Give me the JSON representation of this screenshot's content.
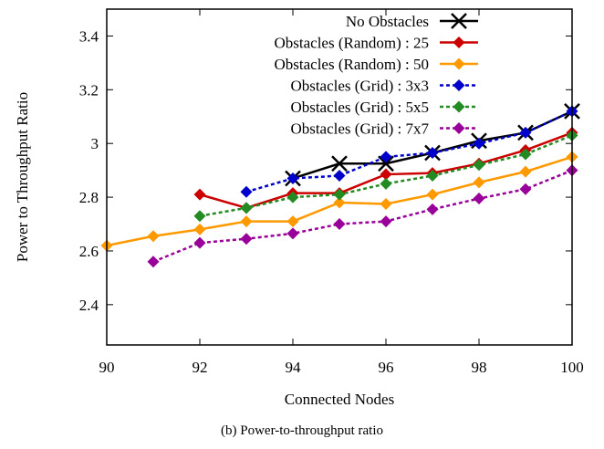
{
  "chart_data": {
    "type": "line",
    "xlabel": "Connected Nodes",
    "ylabel": "Power to Throughput Ratio",
    "caption": "(b) Power-to-throughput ratio",
    "xlim": [
      90,
      100
    ],
    "ylim": [
      2.25,
      3.5
    ],
    "xticks": [
      90,
      92,
      94,
      96,
      98,
      100
    ],
    "yticks": [
      2.4,
      2.6,
      2.8,
      3,
      3.2,
      3.4
    ],
    "ytick_labels": [
      "2.4",
      "2.6",
      "2.8",
      "3",
      "3.2",
      "3.4"
    ],
    "grid": false,
    "legend_position": "top-right",
    "series": [
      {
        "name": "No Obstacles",
        "color": "#000000",
        "marker": "x",
        "dash": "solid",
        "x": [
          94,
          95,
          96,
          97,
          98,
          99,
          100
        ],
        "y": [
          2.87,
          2.925,
          2.925,
          2.965,
          3.01,
          3.04,
          3.12
        ]
      },
      {
        "name": "Obstacles (Random) :   25",
        "color": "#cc0000",
        "marker": "diamond",
        "dash": "solid",
        "x": [
          92,
          93,
          94,
          95,
          96,
          97,
          98,
          99,
          100
        ],
        "y": [
          2.81,
          2.76,
          2.815,
          2.815,
          2.885,
          2.89,
          2.925,
          2.975,
          3.04
        ]
      },
      {
        "name": "Obstacles (Random) :   50",
        "color": "#ff9900",
        "marker": "diamond",
        "dash": "solid",
        "x": [
          90,
          91,
          92,
          93,
          94,
          95,
          96,
          97,
          98,
          99,
          100
        ],
        "y": [
          2.62,
          2.655,
          2.68,
          2.71,
          2.71,
          2.78,
          2.775,
          2.81,
          2.855,
          2.895,
          2.95
        ]
      },
      {
        "name": "Obstacles (Grid) : 3x3",
        "color": "#0000cc",
        "marker": "diamond",
        "dash": "dotted",
        "x": [
          93,
          94,
          95,
          96,
          97,
          98,
          99,
          100
        ],
        "y": [
          2.82,
          2.87,
          2.88,
          2.95,
          2.965,
          3.0,
          3.04,
          3.12
        ]
      },
      {
        "name": "Obstacles (Grid) : 5x5",
        "color": "#228b22",
        "marker": "diamond",
        "dash": "dotted",
        "x": [
          92,
          93,
          94,
          95,
          96,
          97,
          98,
          99,
          100
        ],
        "y": [
          2.73,
          2.76,
          2.8,
          2.81,
          2.85,
          2.88,
          2.92,
          2.96,
          3.03
        ]
      },
      {
        "name": "Obstacles (Grid) : 7x7",
        "color": "#990099",
        "marker": "diamond",
        "dash": "dotted",
        "x": [
          91,
          92,
          93,
          94,
          95,
          96,
          97,
          98,
          99,
          100
        ],
        "y": [
          2.56,
          2.63,
          2.645,
          2.665,
          2.7,
          2.71,
          2.755,
          2.795,
          2.83,
          2.9
        ]
      }
    ]
  }
}
